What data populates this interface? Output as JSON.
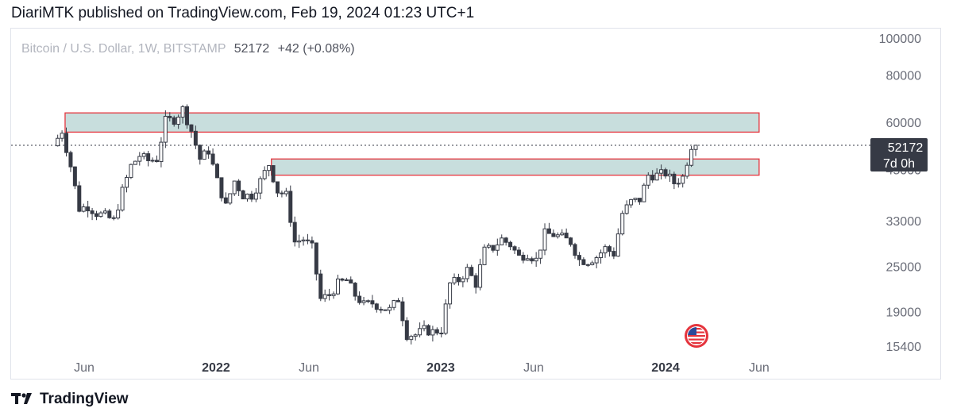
{
  "header": {
    "published": "DiariMTK published on TradingView.com, Feb 19, 2024 01:23 UTC+1"
  },
  "legend": {
    "symbol": "Bitcoin / U.S. Dollar, 1W, BITSTAMP",
    "price": "52172",
    "change": "+42 (+0.08%)"
  },
  "price_label": {
    "price": "52172",
    "countdown": "7d 0h"
  },
  "footer": {
    "brand": "TradingView"
  },
  "colors": {
    "up": "#ffffff",
    "down": "#363a45",
    "zone_fill": "#c8dedd",
    "zone_border": "#e5343d",
    "label_bg": "#363a45"
  },
  "icons": [
    "us-flag-icon",
    "tradingview-logo-icon"
  ],
  "chart_data": {
    "type": "candlestick",
    "title": "Bitcoin / U.S. Dollar, 1W, BITSTAMP",
    "y_axis_ticks": [
      "100000",
      "80000",
      "60000",
      "45000",
      "33000",
      "25000",
      "19000",
      "15400"
    ],
    "y_scale": "log",
    "x_axis_ticks": [
      {
        "label": "Jun",
        "date": "2021-06",
        "bold": false
      },
      {
        "label": "2022",
        "date": "2022-01",
        "bold": true
      },
      {
        "label": "Jun",
        "date": "2022-06",
        "bold": false
      },
      {
        "label": "2023",
        "date": "2023-01",
        "bold": true
      },
      {
        "label": "Jun",
        "date": "2023-06",
        "bold": false
      },
      {
        "label": "2024",
        "date": "2024-01",
        "bold": true
      },
      {
        "label": "Jun",
        "date": "2024-06",
        "bold": false
      }
    ],
    "last_price": 52172,
    "zones": [
      {
        "name": "upper-resistance-zone",
        "from": "2021-05",
        "to": "2024-06",
        "low": 56500,
        "high": 63500
      },
      {
        "name": "lower-support-zone",
        "from": "2022-04",
        "to": "2024-06",
        "low": 43500,
        "high": 48000
      }
    ],
    "weekly_closes": [
      {
        "date": "2021-04-12",
        "close": 52000
      },
      {
        "date": "2021-04-26",
        "close": 57000
      },
      {
        "date": "2021-05-10",
        "close": 46000
      },
      {
        "date": "2021-05-24",
        "close": 35500
      },
      {
        "date": "2021-06-07",
        "close": 36000
      },
      {
        "date": "2021-06-21",
        "close": 34500
      },
      {
        "date": "2021-07-05",
        "close": 34000
      },
      {
        "date": "2021-07-19",
        "close": 33000
      },
      {
        "date": "2021-08-02",
        "close": 39500
      },
      {
        "date": "2021-08-16",
        "close": 46000
      },
      {
        "date": "2021-08-30",
        "close": 49000
      },
      {
        "date": "2021-09-13",
        "close": 47500
      },
      {
        "date": "2021-09-27",
        "close": 48000
      },
      {
        "date": "2021-10-11",
        "close": 60500
      },
      {
        "date": "2021-10-25",
        "close": 61000
      },
      {
        "date": "2021-11-08",
        "close": 65000
      },
      {
        "date": "2021-11-22",
        "close": 57000
      },
      {
        "date": "2021-12-06",
        "close": 48000
      },
      {
        "date": "2021-12-20",
        "close": 50500
      },
      {
        "date": "2022-01-03",
        "close": 42000
      },
      {
        "date": "2022-01-17",
        "close": 36000
      },
      {
        "date": "2022-01-31",
        "close": 42000
      },
      {
        "date": "2022-02-14",
        "close": 38500
      },
      {
        "date": "2022-02-28",
        "close": 38500
      },
      {
        "date": "2022-03-14",
        "close": 42000
      },
      {
        "date": "2022-03-28",
        "close": 46500
      },
      {
        "date": "2022-04-11",
        "close": 39500
      },
      {
        "date": "2022-04-25",
        "close": 38500
      },
      {
        "date": "2022-05-09",
        "close": 29000
      },
      {
        "date": "2022-05-23",
        "close": 29500
      },
      {
        "date": "2022-06-06",
        "close": 28000
      },
      {
        "date": "2022-06-20",
        "close": 20500
      },
      {
        "date": "2022-07-04",
        "close": 21000
      },
      {
        "date": "2022-07-18",
        "close": 22500
      },
      {
        "date": "2022-08-01",
        "close": 23000
      },
      {
        "date": "2022-08-15",
        "close": 21000
      },
      {
        "date": "2022-08-29",
        "close": 19800
      },
      {
        "date": "2022-09-12",
        "close": 20000
      },
      {
        "date": "2022-09-26",
        "close": 19500
      },
      {
        "date": "2022-10-10",
        "close": 19200
      },
      {
        "date": "2022-10-24",
        "close": 20500
      },
      {
        "date": "2022-11-07",
        "close": 16500
      },
      {
        "date": "2022-11-21",
        "close": 16500
      },
      {
        "date": "2022-12-05",
        "close": 17000
      },
      {
        "date": "2022-12-19",
        "close": 16800
      },
      {
        "date": "2023-01-02",
        "close": 17000
      },
      {
        "date": "2023-01-16",
        "close": 22500
      },
      {
        "date": "2023-01-30",
        "close": 23000
      },
      {
        "date": "2023-02-13",
        "close": 24500
      },
      {
        "date": "2023-02-27",
        "close": 22500
      },
      {
        "date": "2023-03-13",
        "close": 27500
      },
      {
        "date": "2023-03-27",
        "close": 28000
      },
      {
        "date": "2023-04-10",
        "close": 29500
      },
      {
        "date": "2023-04-24",
        "close": 28500
      },
      {
        "date": "2023-05-08",
        "close": 26500
      },
      {
        "date": "2023-05-22",
        "close": 27000
      },
      {
        "date": "2023-06-05",
        "close": 26000
      },
      {
        "date": "2023-06-19",
        "close": 30500
      },
      {
        "date": "2023-07-03",
        "close": 30300
      },
      {
        "date": "2023-07-17",
        "close": 29800
      },
      {
        "date": "2023-07-31",
        "close": 29000
      },
      {
        "date": "2023-08-14",
        "close": 26000
      },
      {
        "date": "2023-08-28",
        "close": 25800
      },
      {
        "date": "2023-09-11",
        "close": 26500
      },
      {
        "date": "2023-09-25",
        "close": 27900
      },
      {
        "date": "2023-10-09",
        "close": 27000
      },
      {
        "date": "2023-10-23",
        "close": 34500
      },
      {
        "date": "2023-11-06",
        "close": 37000
      },
      {
        "date": "2023-11-20",
        "close": 37500
      },
      {
        "date": "2023-12-04",
        "close": 43500
      },
      {
        "date": "2023-12-18",
        "close": 43500
      },
      {
        "date": "2024-01-01",
        "close": 44000
      },
      {
        "date": "2024-01-15",
        "close": 41500
      },
      {
        "date": "2024-01-29",
        "close": 43000
      },
      {
        "date": "2024-02-12",
        "close": 52130
      },
      {
        "date": "2024-02-19",
        "close": 52172
      }
    ]
  }
}
